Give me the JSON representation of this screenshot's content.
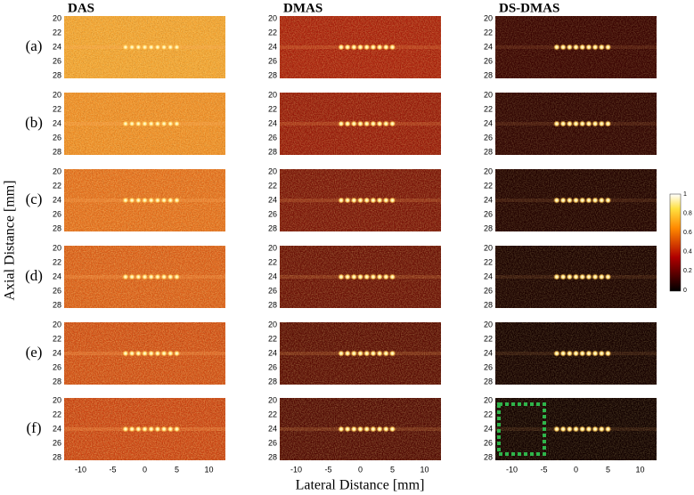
{
  "columns": [
    "DAS",
    "DMAS",
    "DS-DMAS"
  ],
  "rows": [
    "(a)",
    "(b)",
    "(c)",
    "(d)",
    "(e)",
    "(f)"
  ],
  "y_axis": {
    "label": "Axial Distance [mm]",
    "ticks": [
      "20",
      "22",
      "24",
      "26",
      "28"
    ]
  },
  "x_axis": {
    "label": "Lateral Distance [mm]",
    "ticks": [
      "-10",
      "-5",
      "0",
      "5",
      "10"
    ]
  },
  "colorbar": {
    "ticks": [
      "0",
      "0.2",
      "0.4",
      "0.6",
      "0.8",
      "1"
    ]
  }
}
